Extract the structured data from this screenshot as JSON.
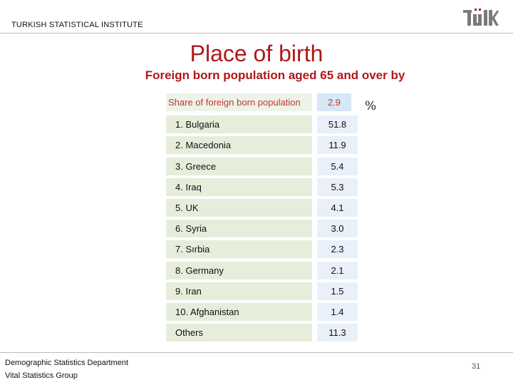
{
  "header": {
    "org": "TURKISH STATISTICAL INSTITUTE",
    "logo_text": "TÜİK",
    "logo_color": "#7a7a7a"
  },
  "title": "Place of birth",
  "subtitle": "Foreign born population aged 65 and over by",
  "unit": "%",
  "table": {
    "header": {
      "label": "Share of foreign born population",
      "value": "2.9"
    },
    "rows": [
      {
        "label": "1. Bulgaria",
        "value": "51.8"
      },
      {
        "label": "2. Macedonia",
        "value": "11.9"
      },
      {
        "label": "3. Greece",
        "value": "5.4"
      },
      {
        "label": "4. Iraq",
        "value": "5.3"
      },
      {
        "label": "5. UK",
        "value": "4.1"
      },
      {
        "label": "6. Syria",
        "value": "3.0"
      },
      {
        "label": "7. Sırbia",
        "value": "2.3"
      },
      {
        "label": "8. Germany",
        "value": "2.1"
      },
      {
        "label": "9. Iran",
        "value": "1.5"
      },
      {
        "label": "10. Afghanistan",
        "value": "1.4"
      },
      {
        "label": "Others",
        "value": "11.3"
      }
    ]
  },
  "footer": {
    "department": "Demographic Statistics Department",
    "group": "Vital Statistics Group",
    "page_number": "31"
  },
  "colors": {
    "title": "#b01818",
    "header_text": "#c0392b",
    "label_cell": "#e6eedb",
    "value_cell": "#eaf0fa"
  }
}
